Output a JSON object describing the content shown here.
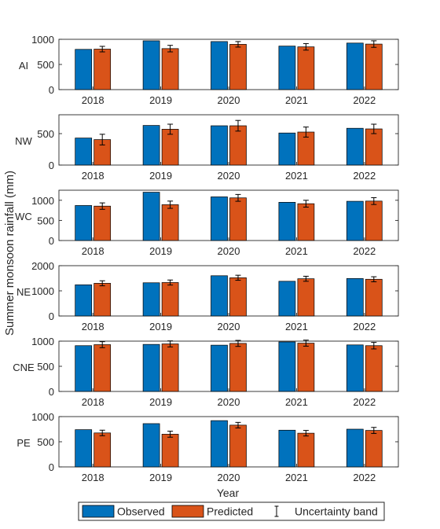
{
  "chart_data": {
    "type": "bar",
    "ylabel": "Summer monsoon rainfall (mm)",
    "xlabel": "Year",
    "categories": [
      "2018",
      "2019",
      "2020",
      "2021",
      "2022"
    ],
    "grid": false,
    "legend_position": "bottom",
    "legend": {
      "observed": "Observed",
      "predicted": "Predicted",
      "uncertainty": "Uncertainty band"
    },
    "colors": {
      "observed": "#0072BD",
      "predicted": "#D95319",
      "error": "#000000"
    },
    "panels": [
      {
        "region": "AI",
        "ylim": [
          0,
          1000
        ],
        "yticks": [
          "0",
          "500",
          "1000"
        ],
        "ytick_values": [
          0,
          500,
          1000
        ],
        "observed": [
          800,
          970,
          955,
          865,
          925
        ],
        "predicted": [
          805,
          815,
          900,
          850,
          905
        ],
        "uncertainty": [
          55,
          65,
          55,
          65,
          65
        ]
      },
      {
        "region": "NW",
        "ylim": [
          0,
          800
        ],
        "yticks": [
          "0",
          "500"
        ],
        "ytick_values": [
          0,
          500
        ],
        "observed": [
          430,
          630,
          625,
          510,
          585
        ],
        "predicted": [
          405,
          570,
          625,
          525,
          575
        ],
        "uncertainty": [
          85,
          80,
          85,
          80,
          75
        ]
      },
      {
        "region": "WC",
        "ylim": [
          0,
          1250
        ],
        "yticks": [
          "0",
          "500",
          "1000"
        ],
        "ytick_values": [
          0,
          500,
          1000
        ],
        "observed": [
          870,
          1200,
          1085,
          950,
          975
        ],
        "predicted": [
          855,
          890,
          1060,
          915,
          980
        ],
        "uncertainty": [
          80,
          90,
          85,
          85,
          85
        ]
      },
      {
        "region": "NE",
        "ylim": [
          0,
          2000
        ],
        "yticks": [
          "0",
          "1000",
          "2000"
        ],
        "ytick_values": [
          0,
          1000,
          2000
        ],
        "observed": [
          1240,
          1320,
          1600,
          1380,
          1490
        ],
        "predicted": [
          1300,
          1330,
          1520,
          1480,
          1460
        ],
        "uncertainty": [
          100,
          100,
          100,
          100,
          100
        ]
      },
      {
        "region": "CNE",
        "ylim": [
          0,
          1000
        ],
        "yticks": [
          "0",
          "500",
          "1000"
        ],
        "ytick_values": [
          0,
          500,
          1000
        ],
        "observed": [
          910,
          935,
          920,
          985,
          925
        ],
        "predicted": [
          930,
          945,
          955,
          960,
          910
        ],
        "uncertainty": [
          60,
          60,
          60,
          60,
          65
        ]
      },
      {
        "region": "PE",
        "ylim": [
          0,
          1000
        ],
        "yticks": [
          "0",
          "500",
          "1000"
        ],
        "ytick_values": [
          0,
          500,
          1000
        ],
        "observed": [
          740,
          860,
          920,
          730,
          750
        ],
        "predicted": [
          675,
          650,
          830,
          670,
          725
        ],
        "uncertainty": [
          55,
          60,
          55,
          55,
          60
        ]
      }
    ]
  }
}
